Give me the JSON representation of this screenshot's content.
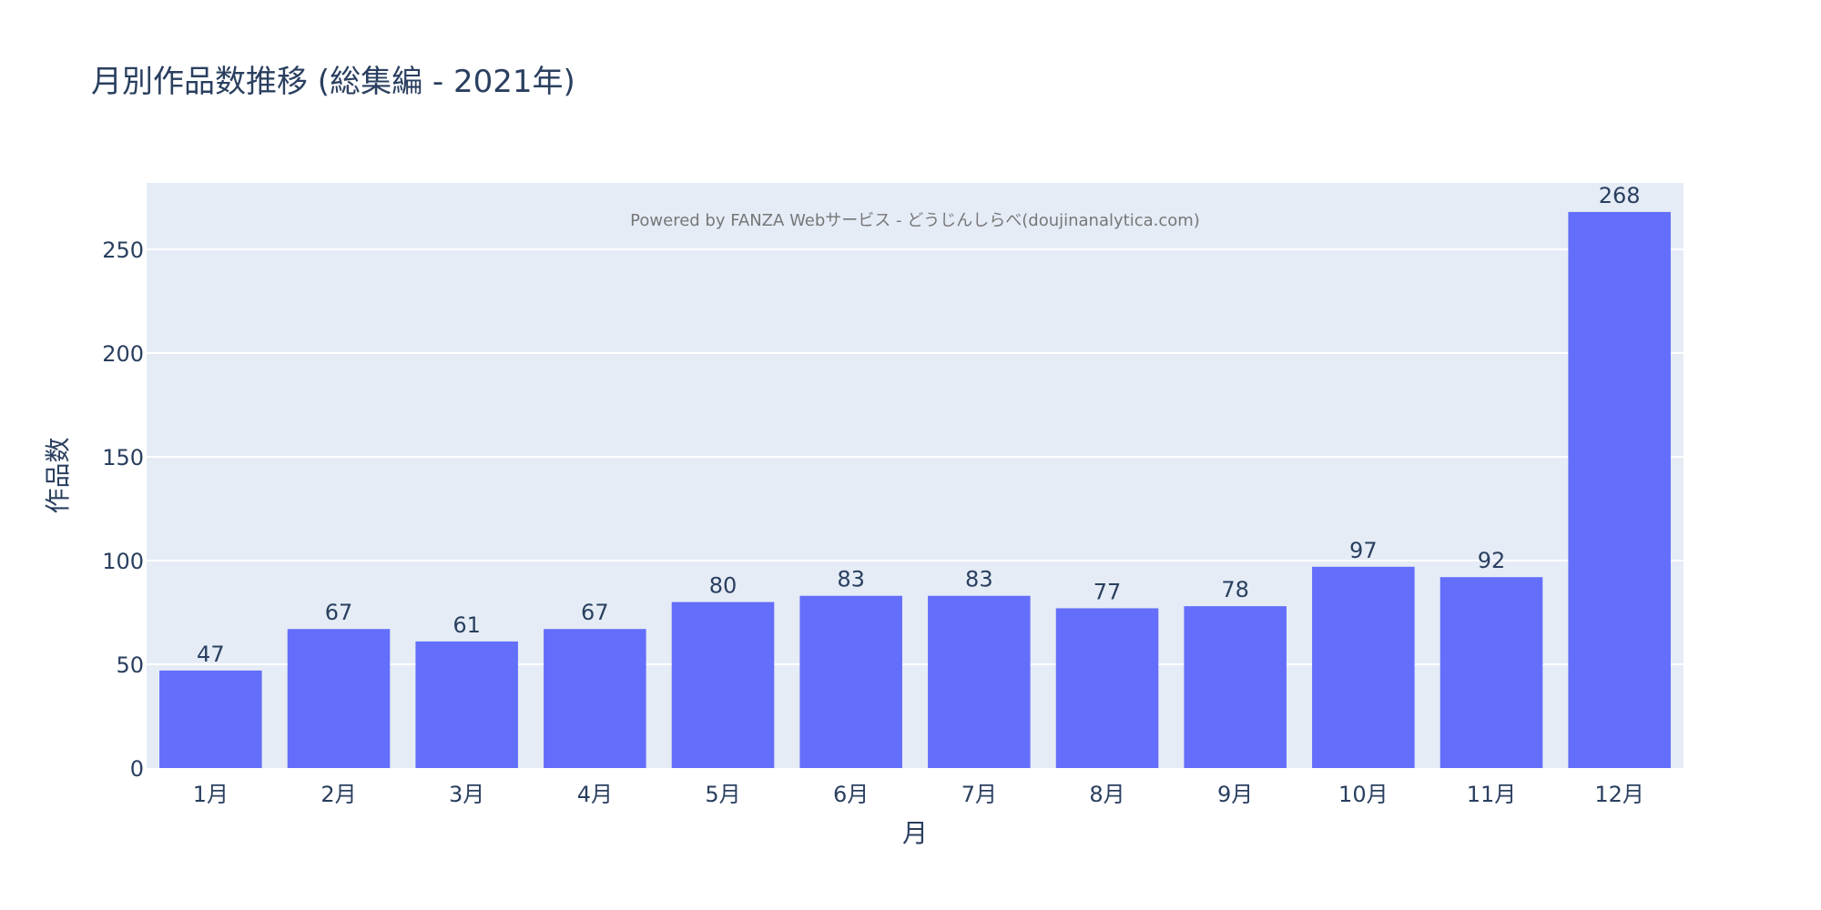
{
  "chart_data": {
    "type": "bar",
    "title": "月別作品数推移 (総集編 - 2021年)",
    "annotation": "Powered by FANZA Webサービス - どうじんしらべ(doujinanalytica.com)",
    "xlabel": "月",
    "ylabel": "作品数",
    "categories": [
      "1月",
      "2月",
      "3月",
      "4月",
      "5月",
      "6月",
      "7月",
      "8月",
      "9月",
      "10月",
      "11月",
      "12月"
    ],
    "values": [
      47,
      67,
      61,
      67,
      80,
      83,
      83,
      77,
      78,
      97,
      92,
      268
    ],
    "data_labels": [
      "47",
      "67",
      "61",
      "67",
      "80",
      "83",
      "83",
      "77",
      "78",
      "97",
      "92",
      "268"
    ],
    "y_ticks": [
      0,
      50,
      100,
      150,
      200,
      250
    ],
    "ylim": [
      0,
      282
    ],
    "grid": true,
    "colors": {
      "bar": "#636efa",
      "plot_background": "#e5ecf6",
      "grid": "#ffffff",
      "text": "#2a3f5f",
      "annotation": "#777777"
    }
  }
}
